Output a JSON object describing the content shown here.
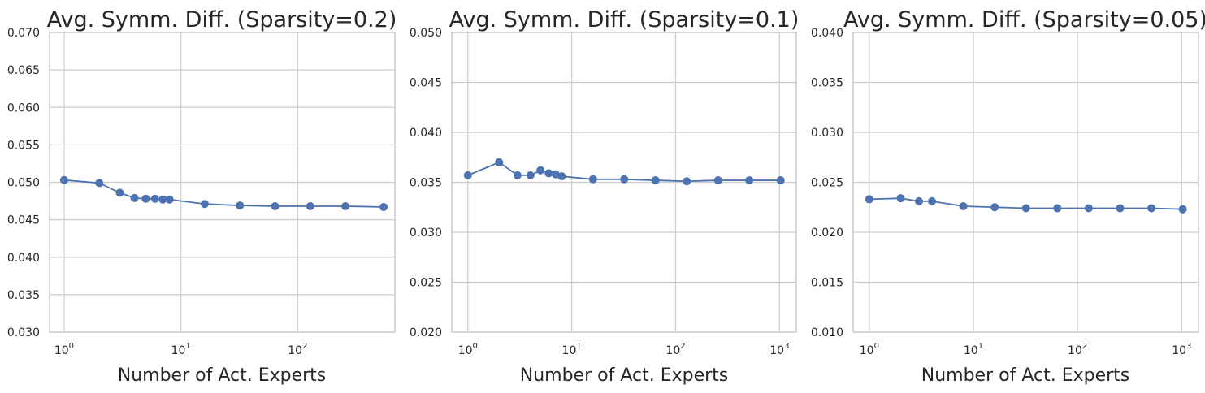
{
  "chart_data": [
    {
      "type": "line",
      "title": "Avg. Symm. Diff. (Sparsity=0.2)",
      "xlabel": "Number of Act. Experts",
      "ylabel": "",
      "xscale": "log",
      "xlim": [
        0.75,
        680
      ],
      "ylim": [
        0.03,
        0.07
      ],
      "x_ticks": [
        1,
        10,
        100
      ],
      "x_tick_labels": [
        "10^0",
        "10^1",
        "10^2"
      ],
      "y_ticks": [
        "0.030",
        "0.035",
        "0.040",
        "0.045",
        "0.050",
        "0.055",
        "0.060",
        "0.065",
        "0.070"
      ],
      "grid": true,
      "color": "#4C72B0",
      "x": [
        1,
        2,
        3,
        4,
        5,
        6,
        7,
        8,
        16,
        32,
        64,
        128,
        256,
        544
      ],
      "values": [
        0.0503,
        0.0499,
        0.0486,
        0.0479,
        0.0478,
        0.0478,
        0.0477,
        0.0477,
        0.0471,
        0.0469,
        0.0468,
        0.0468,
        0.0468,
        0.0467
      ]
    },
    {
      "type": "line",
      "title": "Avg. Symm. Diff. (Sparsity=0.1)",
      "xlabel": "Number of Act. Experts",
      "ylabel": "",
      "xscale": "log",
      "xlim": [
        0.7,
        1450
      ],
      "ylim": [
        0.02,
        0.05
      ],
      "x_ticks": [
        1,
        10,
        100,
        1000
      ],
      "x_tick_labels": [
        "10^0",
        "10^1",
        "10^2",
        "10^3"
      ],
      "y_ticks": [
        "0.020",
        "0.025",
        "0.030",
        "0.035",
        "0.040",
        "0.045",
        "0.050"
      ],
      "grid": true,
      "color": "#4C72B0",
      "x": [
        1,
        2,
        3,
        4,
        5,
        6,
        7,
        8,
        16,
        32,
        64,
        128,
        256,
        512,
        1024
      ],
      "values": [
        0.0357,
        0.037,
        0.0357,
        0.0357,
        0.0362,
        0.0359,
        0.0358,
        0.0356,
        0.0353,
        0.0353,
        0.0352,
        0.0351,
        0.0352,
        0.0352,
        0.0352
      ]
    },
    {
      "type": "line",
      "title": "Avg. Symm. Diff. (Sparsity=0.05)",
      "xlabel": "Number of Act. Experts",
      "ylabel": "",
      "xscale": "log",
      "xlim": [
        0.7,
        1450
      ],
      "ylim": [
        0.01,
        0.04
      ],
      "x_ticks": [
        1,
        10,
        100,
        1000
      ],
      "x_tick_labels": [
        "10^0",
        "10^1",
        "10^2",
        "10^3"
      ],
      "y_ticks": [
        "0.010",
        "0.015",
        "0.020",
        "0.025",
        "0.030",
        "0.035",
        "0.040"
      ],
      "grid": true,
      "color": "#4C72B0",
      "x": [
        1,
        2,
        3,
        4,
        8,
        16,
        32,
        64,
        128,
        256,
        512,
        1024
      ],
      "values": [
        0.0233,
        0.0234,
        0.0231,
        0.0231,
        0.0226,
        0.0225,
        0.0224,
        0.0224,
        0.0224,
        0.0224,
        0.0224,
        0.0223
      ]
    }
  ]
}
